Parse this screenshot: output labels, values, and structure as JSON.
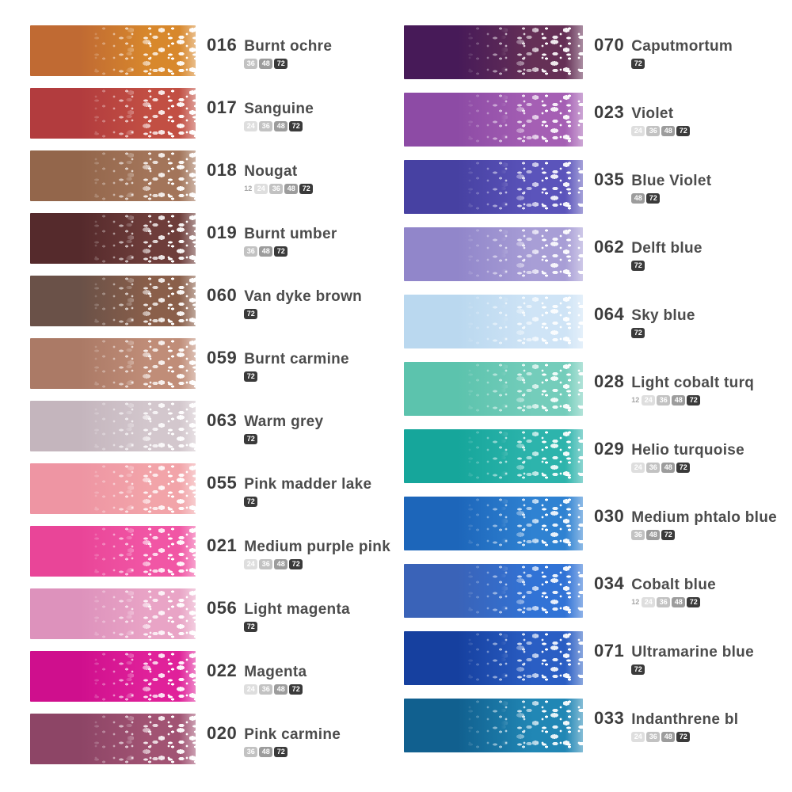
{
  "chart": {
    "description": "Pastel colour chart with gradient swatches, colour codes, names and set-size badges",
    "badge_styles": {
      "12": {
        "bg": "transparent",
        "fg": "#a6a6a6"
      },
      "24": {
        "bg": "#dedede",
        "fg": "#ffffff"
      },
      "36": {
        "bg": "#c2c2c2",
        "fg": "#ffffff"
      },
      "48": {
        "bg": "#9c9c9c",
        "fg": "#ffffff"
      },
      "72": {
        "bg": "#3a3a3a",
        "fg": "#ffffff"
      }
    },
    "text_colors": {
      "code": "#3d3d3d",
      "name": "#4c4c4c"
    },
    "columns": [
      {
        "side": "left",
        "items": [
          {
            "code": "016",
            "name": "Burnt ochre",
            "sets": [
              "36",
              "48",
              "72"
            ],
            "color_start": "#c06a33",
            "color_end": "#d8882c"
          },
          {
            "code": "017",
            "name": "Sanguine",
            "sets": [
              "24",
              "36",
              "48",
              "72"
            ],
            "color_start": "#b23c3e",
            "color_end": "#c24f43"
          },
          {
            "code": "018",
            "name": "Nougat",
            "sets": [
              "12",
              "24",
              "36",
              "48",
              "72"
            ],
            "color_start": "#93664b",
            "color_end": "#a3755a"
          },
          {
            "code": "019",
            "name": "Burnt umber",
            "sets": [
              "36",
              "48",
              "72"
            ],
            "color_start": "#552a2c",
            "color_end": "#6e3d3a"
          },
          {
            "code": "060",
            "name": "Van dyke brown",
            "sets": [
              "72"
            ],
            "color_start": "#6a5148",
            "color_end": "#8a5f4a"
          },
          {
            "code": "059",
            "name": "Burnt carmine",
            "sets": [
              "72"
            ],
            "color_start": "#ab7a66",
            "color_end": "#c08d78"
          },
          {
            "code": "063",
            "name": "Warm grey",
            "sets": [
              "72"
            ],
            "color_start": "#c4b5bd",
            "color_end": "#d3c7cd"
          },
          {
            "code": "055",
            "name": "Pink madder lake",
            "sets": [
              "72"
            ],
            "color_start": "#ee95a3",
            "color_end": "#f2a4a9"
          },
          {
            "code": "021",
            "name": "Medium purple pink",
            "sets": [
              "24",
              "36",
              "48",
              "72"
            ],
            "color_start": "#e94598",
            "color_end": "#f156a5"
          },
          {
            "code": "056",
            "name": "Light magenta",
            "sets": [
              "72"
            ],
            "color_start": "#dd92bc",
            "color_end": "#e9a4c6"
          },
          {
            "code": "022",
            "name": "Magenta",
            "sets": [
              "24",
              "36",
              "48",
              "72"
            ],
            "color_start": "#cf0f8d",
            "color_end": "#e0219a"
          },
          {
            "code": "020",
            "name": "Pink carmine",
            "sets": [
              "36",
              "48",
              "72"
            ],
            "color_start": "#8d4566",
            "color_end": "#a15373"
          }
        ]
      },
      {
        "side": "right",
        "items": [
          {
            "code": "070",
            "name": "Caputmortum",
            "sets": [
              "72"
            ],
            "color_start": "#471a58",
            "color_end": "#653056"
          },
          {
            "code": "023",
            "name": "Violet",
            "sets": [
              "24",
              "36",
              "48",
              "72"
            ],
            "color_start": "#8d4ba5",
            "color_end": "#a55fb4"
          },
          {
            "code": "035",
            "name": "Blue Violet",
            "sets": [
              "48",
              "72"
            ],
            "color_start": "#4741a2",
            "color_end": "#5b54bb"
          },
          {
            "code": "062",
            "name": "Delft blue",
            "sets": [
              "72"
            ],
            "color_start": "#9186ca",
            "color_end": "#a89ed6"
          },
          {
            "code": "064",
            "name": "Sky blue",
            "sets": [
              "72"
            ],
            "color_start": "#bad8ef",
            "color_end": "#cfe4f6"
          },
          {
            "code": "028",
            "name": "Light cobalt turq",
            "sets": [
              "12",
              "24",
              "36",
              "48",
              "72"
            ],
            "color_start": "#5cc3ad",
            "color_end": "#74cdbb"
          },
          {
            "code": "029",
            "name": "Helio turquoise",
            "sets": [
              "24",
              "36",
              "48",
              "72"
            ],
            "color_start": "#16a69b",
            "color_end": "#2db4ac"
          },
          {
            "code": "030",
            "name": "Medium phtalo blue",
            "sets": [
              "36",
              "48",
              "72"
            ],
            "color_start": "#1d66ba",
            "color_end": "#2f82d2"
          },
          {
            "code": "034",
            "name": "Cobalt blue",
            "sets": [
              "12",
              "24",
              "36",
              "48",
              "72"
            ],
            "color_start": "#3a63b8",
            "color_end": "#3173d6"
          },
          {
            "code": "071",
            "name": "Ultramarine blue",
            "sets": [
              "72"
            ],
            "color_start": "#16409f",
            "color_end": "#2a5ec4"
          },
          {
            "code": "033",
            "name": "Indanthrene bl",
            "sets": [
              "24",
              "36",
              "48",
              "72"
            ],
            "color_start": "#11608f",
            "color_end": "#2187b5"
          }
        ]
      }
    ]
  }
}
